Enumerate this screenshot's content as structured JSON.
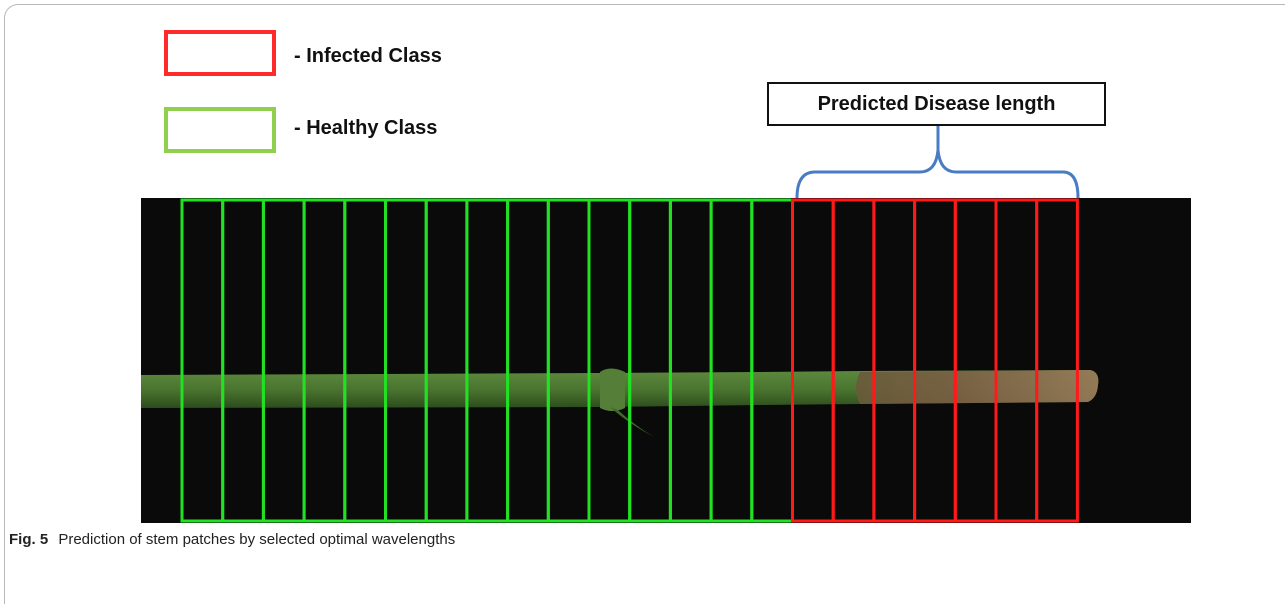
{
  "legend": {
    "items": [
      {
        "label": "- Infected Class",
        "color": "#ff2b2b"
      },
      {
        "label": "- Healthy Class",
        "color": "#8fd14f"
      }
    ]
  },
  "annotation": {
    "label": "Predicted Disease length",
    "bracket_color": "#4a7cc4"
  },
  "patches": {
    "healthy_count": 15,
    "infected_count": 7,
    "healthy_color": "#22e022",
    "infected_color": "#ff1a1a"
  },
  "caption": {
    "fig_label": "Fig. 5",
    "text": "Prediction of stem patches by selected optimal wavelengths"
  }
}
